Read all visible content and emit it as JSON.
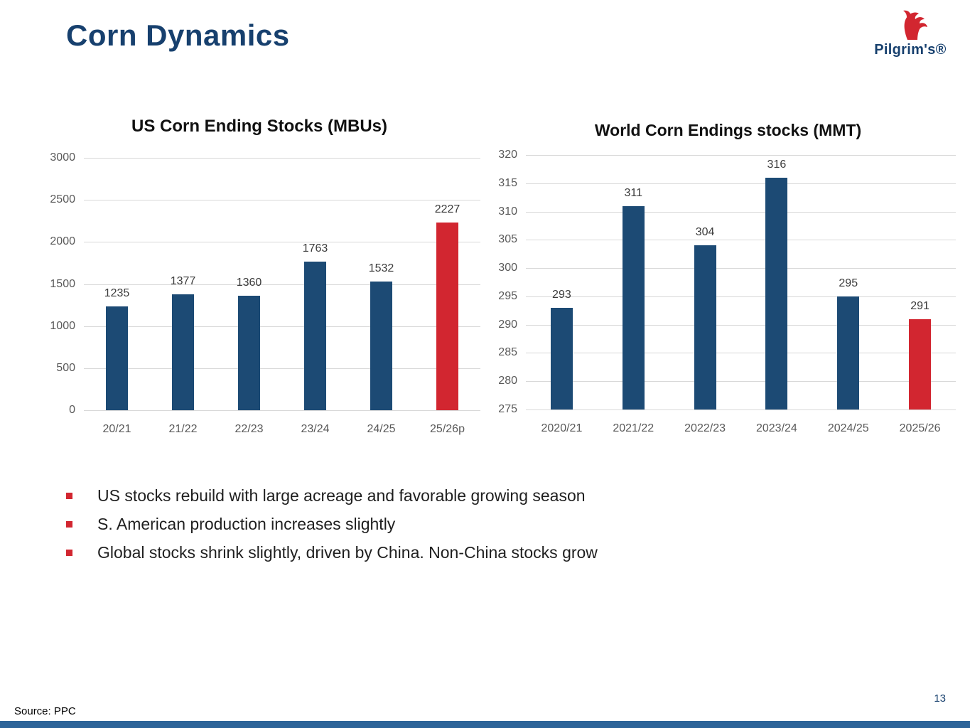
{
  "slide": {
    "title": "Corn Dynamics",
    "logo_text": "Pilgrim's®",
    "bullets": [
      "US stocks rebuild with large acreage and favorable growing season",
      "S. American production increases slightly",
      "Global stocks shrink slightly, driven by China. Non-China stocks grow"
    ],
    "source": "Source: PPC",
    "page_number": "13",
    "colors": {
      "title": "#17406E",
      "bar": "#1C4A74",
      "highlight": "#D22630",
      "footer_bar": "#2D6499"
    }
  },
  "chart_data": [
    {
      "type": "bar",
      "title": "US Corn Ending Stocks (MBUs)",
      "categories": [
        "20/21",
        "21/22",
        "22/23",
        "23/24",
        "24/25",
        "25/26p"
      ],
      "values": [
        1235,
        1377,
        1360,
        1763,
        1532,
        2227
      ],
      "highlight_index": 5,
      "xlabel": "",
      "ylabel": "",
      "ylim": [
        0,
        3000
      ],
      "ytick_step": 500,
      "grid": true,
      "legend": "none"
    },
    {
      "type": "bar",
      "title": "World Corn Endings stocks (MMT)",
      "categories": [
        "2020/21",
        "2021/22",
        "2022/23",
        "2023/24",
        "2024/25",
        "2025/26"
      ],
      "values": [
        293,
        311,
        304,
        316,
        295,
        291
      ],
      "highlight_index": 5,
      "xlabel": "",
      "ylabel": "",
      "ylim": [
        275,
        320
      ],
      "ytick_step": 5,
      "grid": true,
      "legend": "none"
    }
  ]
}
